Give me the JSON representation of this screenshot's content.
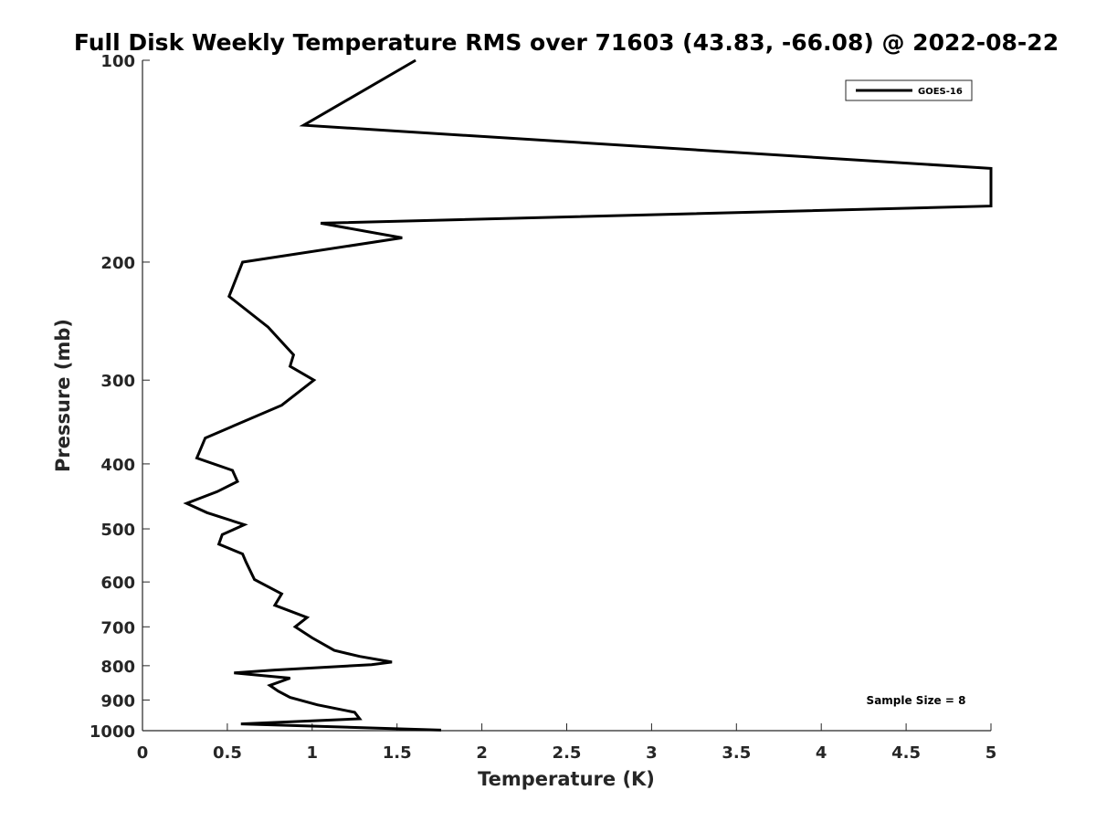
{
  "chart_data": {
    "type": "line",
    "title": "Full Disk Weekly Temperature RMS over 71603 (43.83, -66.08) @ 2022-08-22",
    "xlabel": "Temperature (K)",
    "ylabel": "Pressure (mb)",
    "xlim": [
      0,
      5
    ],
    "ylim": [
      100,
      1000
    ],
    "y_scale": "log",
    "y_reversed": true,
    "x_ticks": [
      "0",
      "0.5",
      "1",
      "1.5",
      "2",
      "2.5",
      "3",
      "3.5",
      "4",
      "4.5",
      "5"
    ],
    "y_ticks": [
      "100",
      "200",
      "300",
      "400",
      "500",
      "600",
      "700",
      "800",
      "900",
      "1000"
    ],
    "grid": false,
    "legend_position": "top-right",
    "annotation": "Sample Size = 8",
    "series": [
      {
        "name": "GOES-16",
        "color": "#000000",
        "x": [
          1.61,
          0.95,
          5.0,
          5.0,
          1.05,
          1.53,
          0.59,
          0.51,
          0.74,
          0.89,
          0.87,
          1.01,
          0.82,
          0.37,
          0.32,
          0.53,
          0.56,
          0.44,
          0.26,
          0.38,
          0.6,
          0.47,
          0.45,
          0.59,
          0.61,
          0.66,
          0.82,
          0.78,
          0.97,
          0.9,
          1.0,
          1.13,
          1.28,
          1.47,
          1.35,
          0.78,
          0.54,
          0.87,
          0.75,
          0.8,
          0.87,
          1.03,
          1.25,
          1.28,
          0.58,
          1.76
        ],
        "y": [
          100,
          125,
          145,
          165,
          175,
          184,
          200,
          225,
          250,
          275,
          286,
          300,
          327,
          366,
          392,
          409,
          425,
          440,
          458,
          473,
          493,
          510,
          527,
          545,
          560,
          595,
          625,
          650,
          678,
          700,
          727,
          759,
          775,
          790,
          797,
          812,
          820,
          835,
          856,
          873,
          892,
          915,
          939,
          960,
          977,
          998
        ]
      }
    ]
  }
}
